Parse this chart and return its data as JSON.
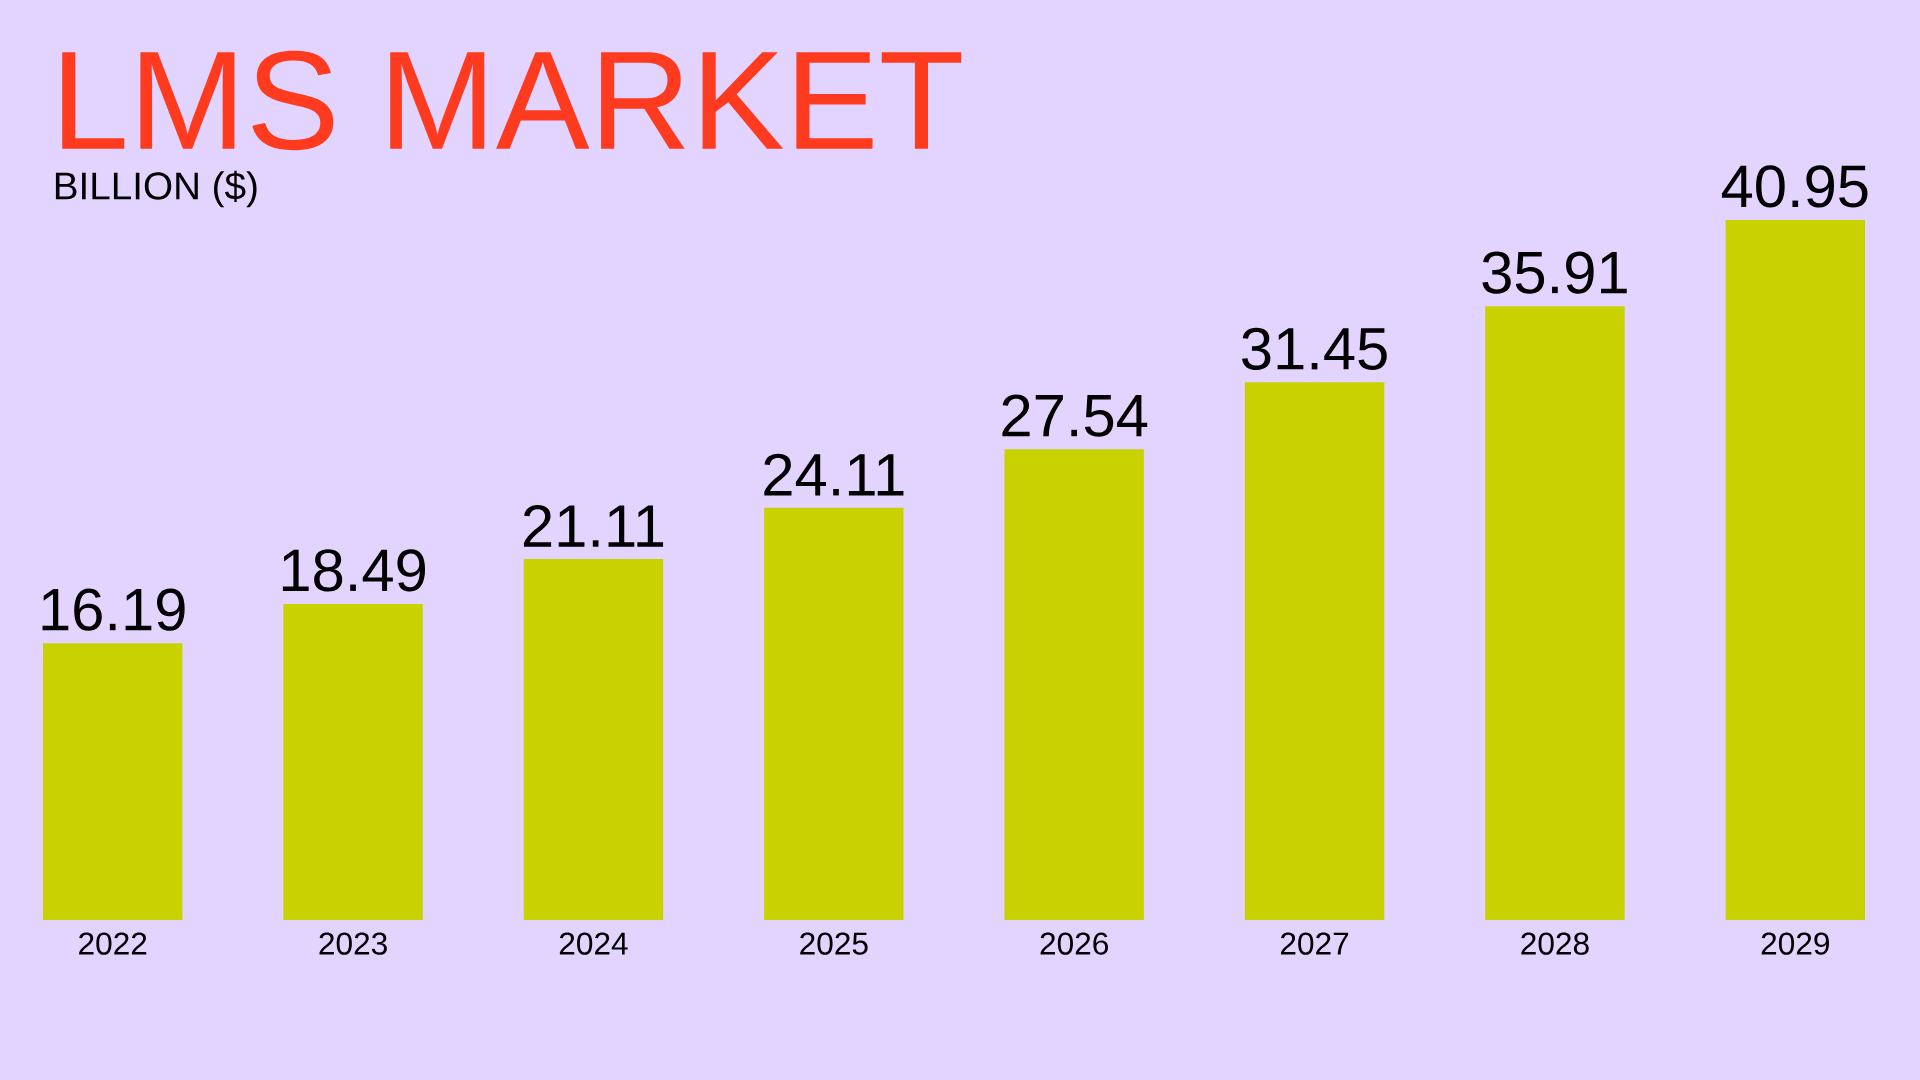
{
  "chart_data": {
    "type": "bar",
    "title": "LMS MARKET",
    "subtitle": "BILLION ($)",
    "categories": [
      "2022",
      "2023",
      "2024",
      "2025",
      "2026",
      "2027",
      "2028",
      "2029"
    ],
    "values": [
      16.19,
      18.49,
      21.11,
      24.11,
      27.54,
      31.45,
      35.91,
      40.95
    ],
    "color": "#c8d200",
    "data_labels": true
  }
}
